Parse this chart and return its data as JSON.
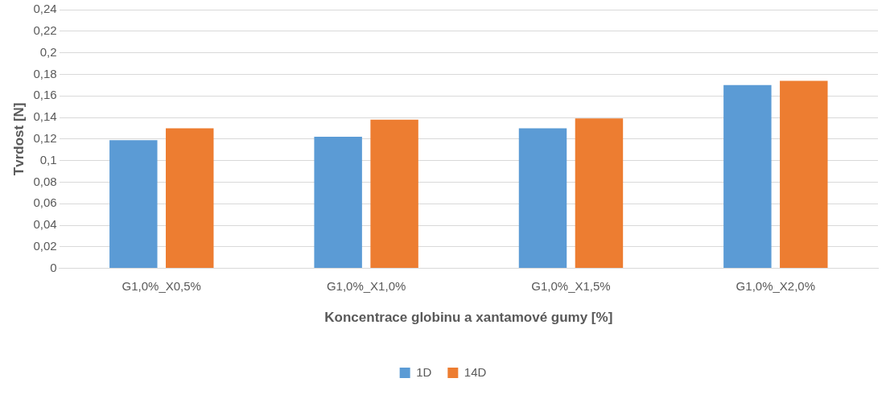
{
  "chart_data": {
    "type": "bar",
    "xlabel": "Koncentrace globinu a xantamové gumy [%]",
    "ylabel": "Tvrdost [N]",
    "categories": [
      "G1,0%_X0,5%",
      "G1,0%_X1,0%",
      "G1,0%_X1,5%",
      "G1,0%_X2,0%"
    ],
    "series": [
      {
        "name": "1D",
        "color": "#5b9bd5",
        "values": [
          0.119,
          0.122,
          0.13,
          0.17
        ]
      },
      {
        "name": "14D",
        "color": "#ed7d31",
        "values": [
          0.13,
          0.138,
          0.139,
          0.174
        ]
      }
    ],
    "ylim": [
      0,
      0.24
    ],
    "yticks": [
      {
        "value": 0,
        "label": "0"
      },
      {
        "value": 0.02,
        "label": "0,02"
      },
      {
        "value": 0.04,
        "label": "0,04"
      },
      {
        "value": 0.06,
        "label": "0,06"
      },
      {
        "value": 0.08,
        "label": "0,08"
      },
      {
        "value": 0.1,
        "label": "0,1"
      },
      {
        "value": 0.12,
        "label": "0,12"
      },
      {
        "value": 0.14,
        "label": "0,14"
      },
      {
        "value": 0.16,
        "label": "0,16"
      },
      {
        "value": 0.18,
        "label": "0,18"
      },
      {
        "value": 0.2,
        "label": "0,2"
      },
      {
        "value": 0.22,
        "label": "0,22"
      },
      {
        "value": 0.24,
        "label": "0,24"
      }
    ],
    "grid": "y",
    "legend": "bottom"
  }
}
